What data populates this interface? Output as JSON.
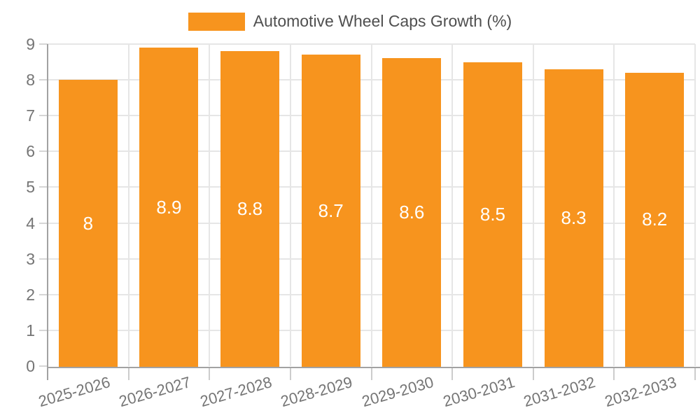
{
  "legend": {
    "label": "Automotive Wheel Caps Growth (%)",
    "swatch_color": "#f7941e"
  },
  "chart_data": {
    "type": "bar",
    "title": "Automotive Wheel Caps Growth (%)",
    "series_name": "Automotive Wheel Caps Growth (%)",
    "categories": [
      "2025-2026",
      "2026-2027",
      "2027-2028",
      "2028-2029",
      "2029-2030",
      "2030-2031",
      "2031-2032",
      "2032-2033"
    ],
    "values": [
      8,
      8.9,
      8.8,
      8.7,
      8.6,
      8.5,
      8.3,
      8.2
    ],
    "value_labels": [
      "8",
      "8.9",
      "8.8",
      "8.7",
      "8.6",
      "8.5",
      "8.3",
      "8.2"
    ],
    "xlabel": "",
    "ylabel": "",
    "ylim": [
      0,
      9
    ],
    "y_ticks": [
      0,
      1,
      2,
      3,
      4,
      5,
      6,
      7,
      8,
      9
    ],
    "grid": true,
    "legend_position": "top",
    "bar_color": "#f7941e",
    "value_label_color": "#ffffff"
  },
  "colors": {
    "bar": "#f7941e",
    "gridline": "#e6e6e6",
    "axis": "#a2a2a2",
    "tick_label": "#757575",
    "legend_text": "#4f4f4f",
    "background": "#ffffff"
  }
}
